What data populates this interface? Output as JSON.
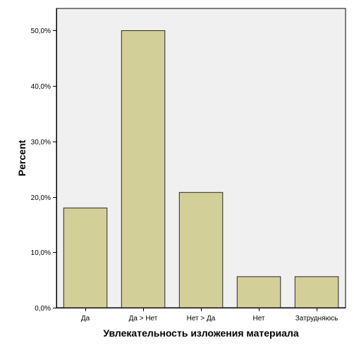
{
  "chart_data": {
    "type": "bar",
    "title": "",
    "xlabel": "Увлекательность изложения материала",
    "ylabel": "Percent",
    "categories": [
      "Да",
      "Да > Нет",
      "Нет > Да",
      "Нет",
      "Затрудняюсь"
    ],
    "values": [
      18.0,
      50.0,
      20.8,
      5.6,
      5.6
    ],
    "ylim": [
      0,
      54
    ],
    "yticks": [
      0,
      10,
      20,
      30,
      40,
      50
    ],
    "ytick_labels": [
      "0,0%",
      "10,0%",
      "20,0%",
      "30,0%",
      "40,0%",
      "50,0%"
    ],
    "grid": false,
    "legend": "none",
    "colors": {
      "bar_fill": "#d3cf98",
      "bar_stroke": "#2a2a2a",
      "plot_background": "#f0f0f0",
      "axis": "#000000"
    }
  }
}
